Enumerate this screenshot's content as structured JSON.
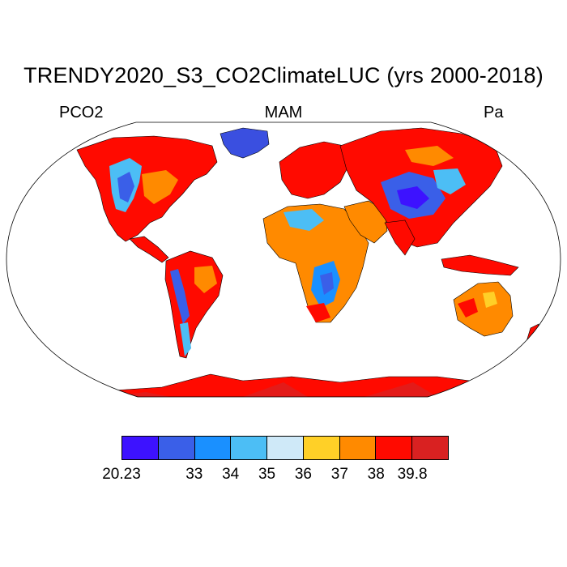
{
  "title": "TRENDY2020_S3_CO2ClimateLUC (yrs 2000-2018)",
  "subtitle": {
    "left": "PCO2",
    "center": "MAM",
    "right": "Pa"
  },
  "colorbar": {
    "colors": [
      "#3d12ff",
      "#3a5fe8",
      "#1a90ff",
      "#4cbef5",
      "#cfe9f8",
      "#ffd027",
      "#ff8a00",
      "#ff0a00",
      "#d92121"
    ],
    "labels": [
      "20.23",
      "33",
      "34",
      "35",
      "36",
      "37",
      "38",
      "39.8"
    ]
  }
}
